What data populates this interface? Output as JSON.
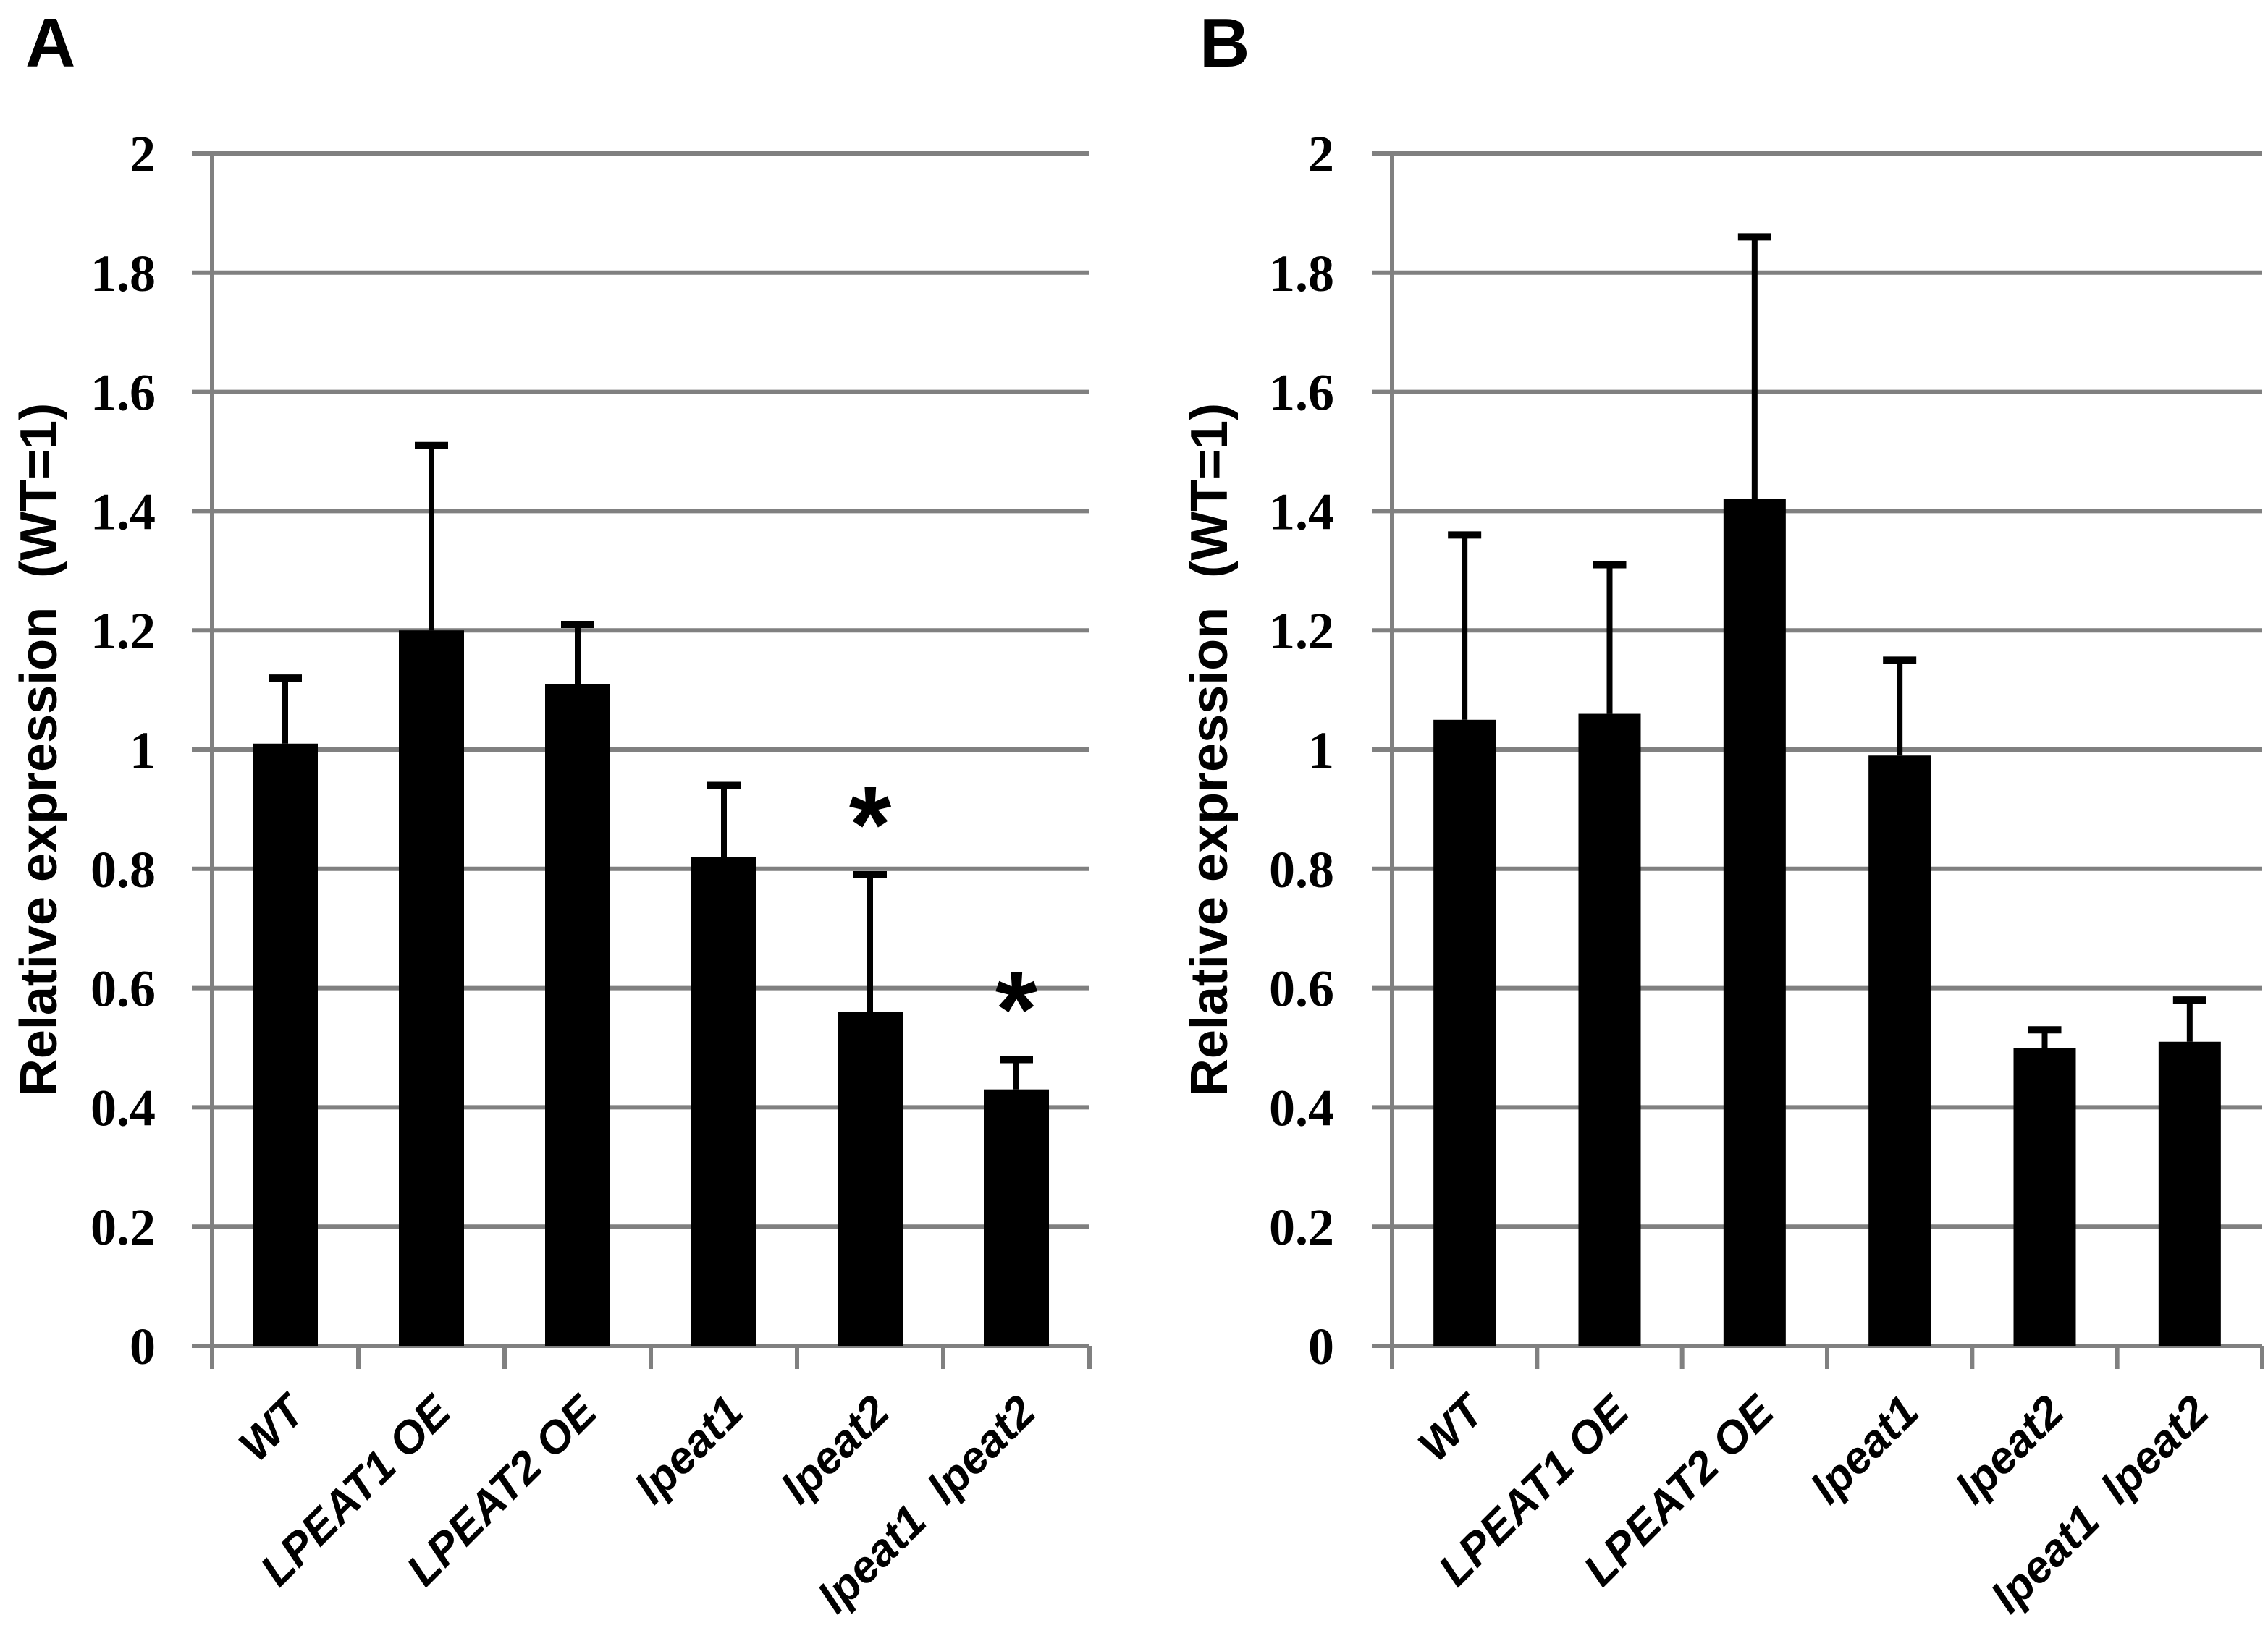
{
  "figure": {
    "background": "#ffffff",
    "panel_letters": [
      "A",
      "B"
    ]
  },
  "colors": {
    "bar": "#000000",
    "gridline": "#808080",
    "axis": "#808080",
    "error_bar": "#000000",
    "text": "#000000"
  },
  "chart_data": [
    {
      "type": "bar",
      "panel_label": "A",
      "title": "",
      "xlabel": "",
      "ylabel": "Relative expression  (WT=1)",
      "ylim": [
        0,
        2
      ],
      "grid": true,
      "legend": "none",
      "categories": [
        "WT",
        "LPEAT1 OE",
        "LPEAT2 OE",
        "lpeat1",
        "lpeat2",
        "lpeat1  lpeat2"
      ],
      "values": [
        1.01,
        1.2,
        1.11,
        0.82,
        0.56,
        0.43
      ],
      "error_plus": [
        0.11,
        0.31,
        0.1,
        0.12,
        0.23,
        0.05
      ],
      "significance": [
        "",
        "",
        "",
        "",
        "*",
        "*"
      ],
      "yticks": [
        0,
        0.2,
        0.4,
        0.6,
        0.8,
        1,
        1.2,
        1.4,
        1.6,
        1.8,
        2
      ],
      "ytick_labels": [
        "0",
        "0.2",
        "0.4",
        "0.6",
        "0.8",
        "1",
        "1.2",
        "1.4",
        "1.6",
        "1.8",
        "2"
      ]
    },
    {
      "type": "bar",
      "panel_label": "B",
      "title": "",
      "xlabel": "",
      "ylabel": "Relative expression  (WT=1)",
      "ylim": [
        0,
        2
      ],
      "grid": true,
      "legend": "none",
      "categories": [
        "WT",
        "LPEAT1 OE",
        "LPEAT2 OE",
        "lpeat1",
        "lpeat2",
        "lpeat1  lpeat2"
      ],
      "values": [
        1.05,
        1.06,
        1.42,
        0.99,
        0.5,
        0.51
      ],
      "error_plus": [
        0.31,
        0.25,
        0.44,
        0.16,
        0.03,
        0.07
      ],
      "significance": [
        "",
        "",
        "",
        "",
        "",
        ""
      ],
      "yticks": [
        0,
        0.2,
        0.4,
        0.6,
        0.8,
        1,
        1.2,
        1.4,
        1.6,
        1.8,
        2
      ],
      "ytick_labels": [
        "0",
        "0.2",
        "0.4",
        "0.6",
        "0.8",
        "1",
        "1.2",
        "1.4",
        "1.6",
        "1.8",
        "2"
      ]
    }
  ]
}
